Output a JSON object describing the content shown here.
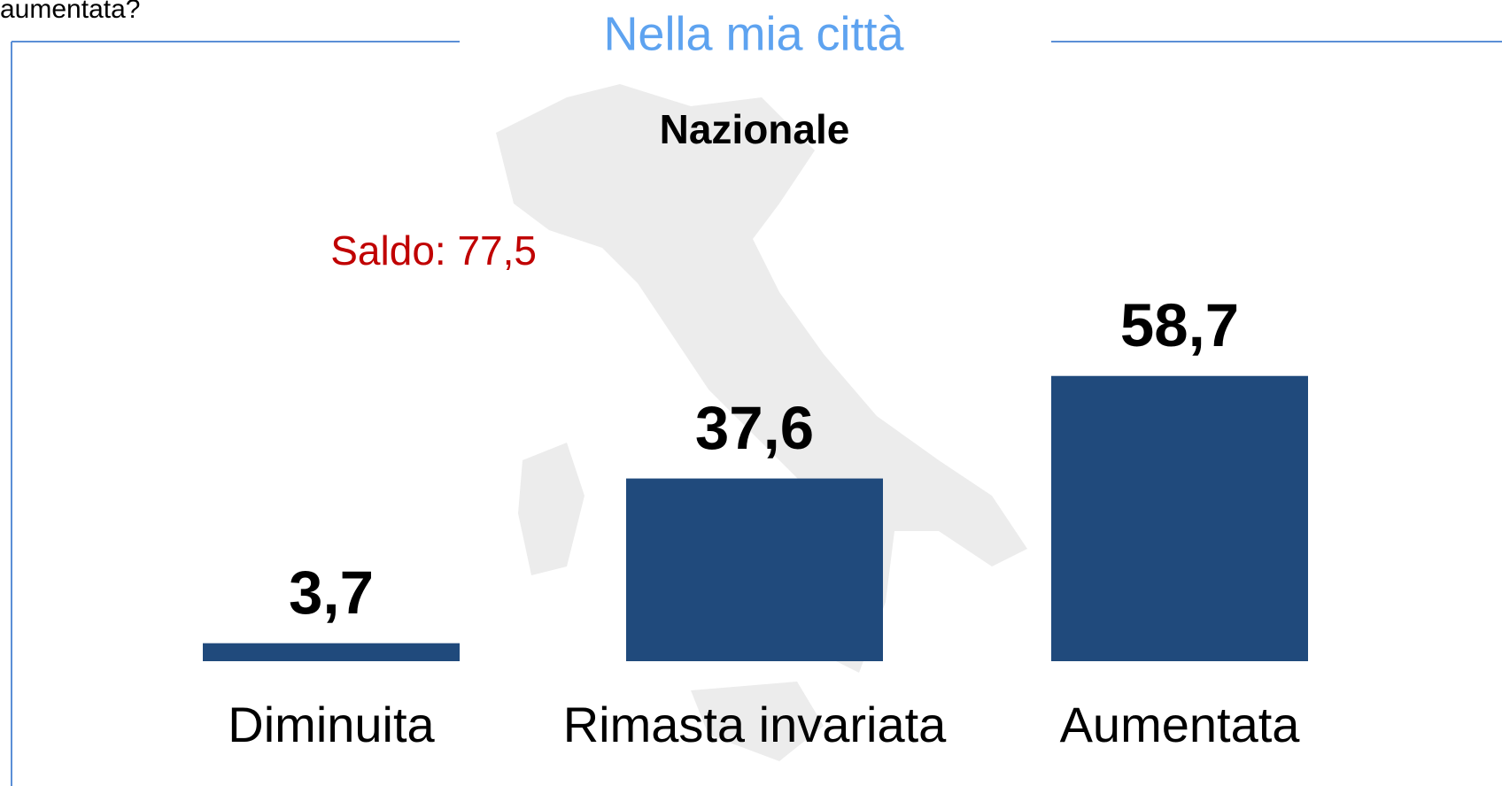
{
  "header": {
    "question_fragment": "aumentata?"
  },
  "chart_data": {
    "type": "bar",
    "title": "Nella mia città",
    "subtitle": "Nazionale",
    "annotation": "Saldo: 77,5",
    "categories": [
      "Diminuita",
      "Rimasta invariata",
      "Aumentata"
    ],
    "values": [
      3.7,
      37.6,
      58.7
    ],
    "value_labels": [
      "3,7",
      "37,6",
      "58,7"
    ],
    "color": "#204a7c"
  }
}
